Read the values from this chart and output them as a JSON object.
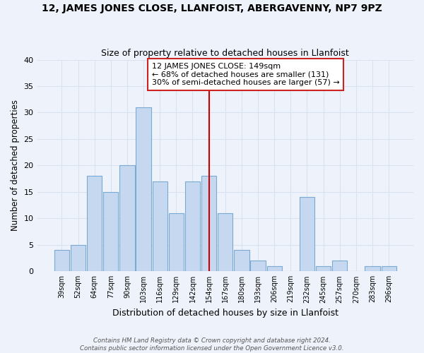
{
  "title": "12, JAMES JONES CLOSE, LLANFOIST, ABERGAVENNY, NP7 9PZ",
  "subtitle": "Size of property relative to detached houses in Llanfoist",
  "xlabel": "Distribution of detached houses by size in Llanfoist",
  "ylabel": "Number of detached properties",
  "bins": [
    "39sqm",
    "52sqm",
    "64sqm",
    "77sqm",
    "90sqm",
    "103sqm",
    "116sqm",
    "129sqm",
    "142sqm",
    "154sqm",
    "167sqm",
    "180sqm",
    "193sqm",
    "206sqm",
    "219sqm",
    "232sqm",
    "245sqm",
    "257sqm",
    "270sqm",
    "283sqm",
    "296sqm"
  ],
  "values": [
    4,
    5,
    18,
    15,
    20,
    31,
    17,
    11,
    17,
    18,
    11,
    4,
    2,
    1,
    0,
    14,
    1,
    2,
    0,
    1,
    1
  ],
  "bar_color": "#c5d8f0",
  "bar_edge_color": "#7aaad4",
  "reference_line_x": 9.0,
  "reference_line_color": "#cc0000",
  "ylim": [
    0,
    40
  ],
  "yticks": [
    0,
    5,
    10,
    15,
    20,
    25,
    30,
    35,
    40
  ],
  "annotation_title": "12 JAMES JONES CLOSE: 149sqm",
  "annotation_line1": "← 68% of detached houses are smaller (131)",
  "annotation_line2": "30% of semi-detached houses are larger (57) →",
  "annotation_box_color": "#ffffff",
  "annotation_box_edge": "#cc2222",
  "footnote1": "Contains HM Land Registry data © Crown copyright and database right 2024.",
  "footnote2": "Contains public sector information licensed under the Open Government Licence v3.0.",
  "bg_color": "#eef2fb",
  "grid_color": "#d8e2f0"
}
